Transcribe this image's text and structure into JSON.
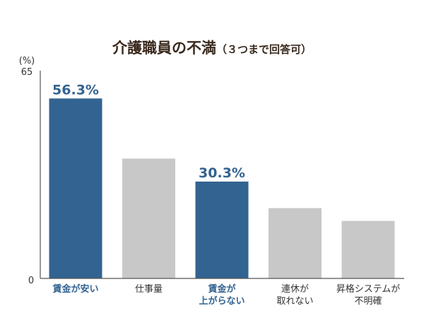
{
  "chart_data": {
    "type": "bar",
    "title": "介護職員の不満",
    "subtitle": "（３つまで回答可）",
    "ylabel_unit": "(%)",
    "ylim": [
      0,
      65
    ],
    "yticks": [
      "65",
      "0"
    ],
    "categories": [
      [
        "賃金が安い"
      ],
      [
        "仕事量"
      ],
      [
        "賃金が",
        "上がらない"
      ],
      [
        "連休が",
        "取れない"
      ],
      [
        "昇格システムが",
        "不明確"
      ]
    ],
    "values": [
      56.3,
      37.5,
      30.3,
      22.0,
      18.0
    ],
    "highlighted": [
      true,
      false,
      true,
      false,
      false
    ],
    "data_labels": [
      "56.3%",
      "",
      "30.3%",
      "",
      ""
    ],
    "colors": {
      "highlight": "#336391",
      "normal": "#c8c8c9",
      "highlight_label": "#336391",
      "normal_label": "#333333",
      "axis": "#555555"
    }
  }
}
